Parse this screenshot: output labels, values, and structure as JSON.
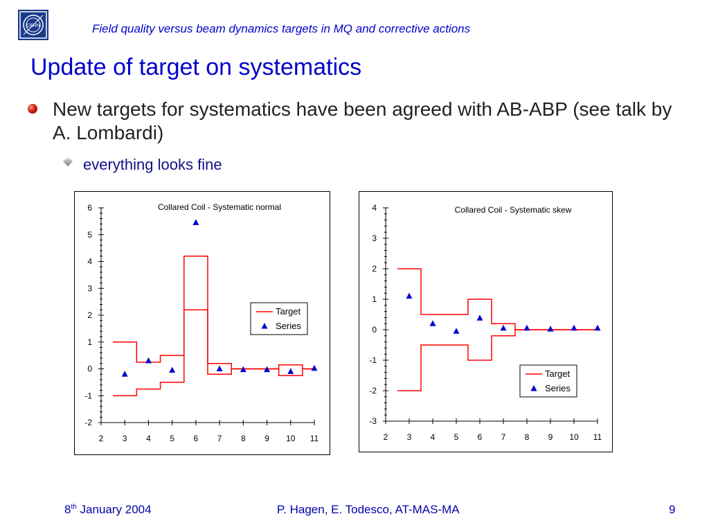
{
  "header": {
    "subtitle": "Field quality versus beam dynamics targets in MQ and corrective actions",
    "logo_text": "CERN",
    "logo_icon": "cern-logo"
  },
  "slide": {
    "title": "Update of target on systematics",
    "bullet1": "New targets for systematics have been agreed with AB-ABP (see talk by A. Lombardi)",
    "bullet2": "everything looks fine"
  },
  "footer": {
    "date_day": "8",
    "date_sup": "th",
    "date_rest": " January 2004",
    "authors": "P. Hagen, E. Todesco, AT-MAS-MA",
    "page": "9"
  },
  "colors": {
    "accent": "#0000cc",
    "target_line": "#ff0000",
    "series_marker": "#0000cc"
  },
  "chart_data": [
    {
      "type": "scatter",
      "title": "Collared Coil - Systematic normal",
      "xlim": [
        2,
        11
      ],
      "ylim": [
        -2,
        6
      ],
      "x_ticks": [
        2,
        3,
        4,
        5,
        6,
        7,
        8,
        9,
        10,
        11
      ],
      "y_ticks": [
        -2,
        -1,
        0,
        1,
        2,
        3,
        4,
        5,
        6
      ],
      "legend": [
        "Target",
        "Series"
      ],
      "legend_position": "right",
      "series": [
        {
          "name": "Series",
          "marker": "triangle",
          "x": [
            3,
            4,
            5,
            6,
            7,
            8,
            9,
            10,
            11
          ],
          "y": [
            -0.2,
            0.3,
            -0.05,
            5.45,
            0.0,
            -0.03,
            -0.03,
            -0.1,
            0.02
          ]
        },
        {
          "name": "Target",
          "style": "step-band",
          "bins": [
            {
              "from": 2.5,
              "to": 3.5,
              "low": -1.0,
              "high": 1.0
            },
            {
              "from": 3.5,
              "to": 4.5,
              "low": -0.75,
              "high": 0.25
            },
            {
              "from": 4.5,
              "to": 5.5,
              "low": -0.5,
              "high": 0.5
            },
            {
              "from": 5.5,
              "to": 6.5,
              "low": 2.2,
              "high": 4.2
            },
            {
              "from": 6.5,
              "to": 7.5,
              "low": -0.2,
              "high": 0.2
            },
            {
              "from": 7.5,
              "to": 9.5,
              "low": 0.0,
              "high": 0.0
            },
            {
              "from": 9.5,
              "to": 10.5,
              "low": -0.25,
              "high": 0.15
            },
            {
              "from": 10.5,
              "to": 11.0,
              "low": 0.0,
              "high": 0.0
            }
          ]
        }
      ]
    },
    {
      "type": "scatter",
      "title": "Collared Coil - Systematic skew",
      "xlim": [
        2,
        11
      ],
      "ylim": [
        -3,
        4
      ],
      "x_ticks": [
        2,
        3,
        4,
        5,
        6,
        7,
        8,
        9,
        10,
        11
      ],
      "y_ticks": [
        -3,
        -2,
        -1,
        0,
        1,
        2,
        3,
        4
      ],
      "legend": [
        "Target",
        "Series"
      ],
      "legend_position": "bottom-right",
      "series": [
        {
          "name": "Series",
          "marker": "triangle",
          "x": [
            3,
            4,
            5,
            6,
            7,
            8,
            9,
            10,
            11
          ],
          "y": [
            1.1,
            0.2,
            -0.05,
            0.38,
            0.05,
            0.05,
            0.02,
            0.05,
            0.05
          ]
        },
        {
          "name": "Target",
          "style": "step-band",
          "bins": [
            {
              "from": 2.5,
              "to": 3.5,
              "low": -2.0,
              "high": 2.0
            },
            {
              "from": 3.5,
              "to": 5.5,
              "low": -0.5,
              "high": 0.5
            },
            {
              "from": 5.5,
              "to": 6.5,
              "low": -1.0,
              "high": 1.0
            },
            {
              "from": 6.5,
              "to": 7.5,
              "low": -0.2,
              "high": 0.2
            },
            {
              "from": 7.5,
              "to": 11.0,
              "low": 0.0,
              "high": 0.0
            }
          ]
        }
      ]
    }
  ]
}
